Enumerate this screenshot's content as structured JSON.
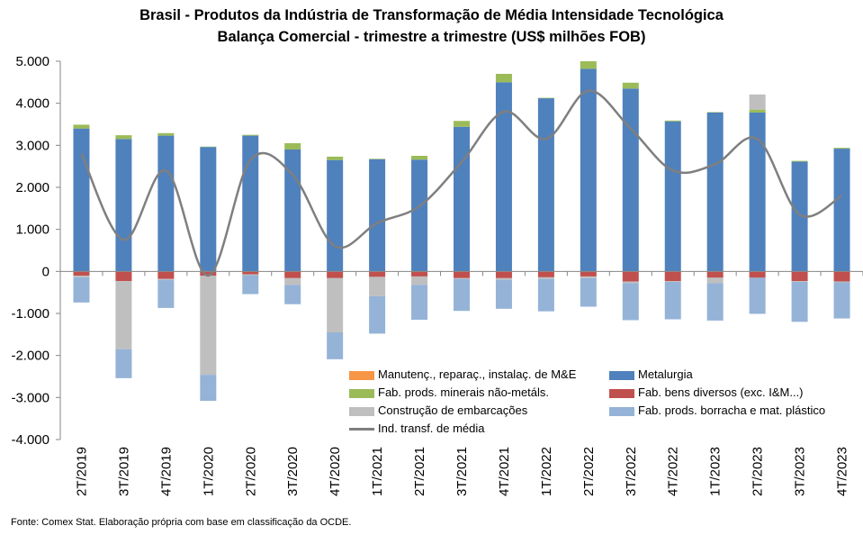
{
  "title_line1": "Brasil - Produtos da Indústria de Transformação de Média Intensidade Tecnológica",
  "title_line2": "Balança Comercial - trimestre a trimestre (US$ milhões FOB)",
  "source": "Fonte: Comex Stat. Elaboração própria com base em classificação da OCDE.",
  "chart_data": {
    "type": "bar",
    "stacked": true,
    "categories": [
      "2T/2019",
      "3T/2019",
      "4T/2019",
      "1T/2020",
      "2T/2020",
      "3T/2020",
      "4T/2020",
      "1T/2021",
      "2T/2021",
      "3T/2021",
      "4T/2021",
      "1T/2022",
      "2T/2022",
      "3T/2022",
      "4T/2022",
      "1T/2023",
      "2T/2023",
      "3T/2023",
      "4T/2023"
    ],
    "ylim": [
      -4000,
      5000
    ],
    "yticks": [
      -4000,
      -3000,
      -2000,
      -1000,
      0,
      1000,
      2000,
      3000,
      4000,
      5000
    ],
    "ytick_labels": [
      "-4.000",
      "-3.000",
      "-2.000",
      "-1.000",
      "0",
      "1.000",
      "2.000",
      "3.000",
      "4.000",
      "5.000"
    ],
    "grid": false,
    "legend_placement": "bottom-right",
    "series": [
      {
        "name": "Manutenç., reparaç., instalaç. de M&E",
        "color": "#F79646",
        "values": [
          -10,
          -10,
          -10,
          -10,
          -10,
          -10,
          -10,
          -10,
          -10,
          -10,
          -10,
          -10,
          -10,
          -10,
          -10,
          -10,
          -10,
          -10,
          -10
        ]
      },
      {
        "name": "Metalurgia",
        "color": "#4F81BD",
        "values": [
          3400,
          3150,
          3230,
          2960,
          3230,
          2900,
          2650,
          2670,
          2660,
          3440,
          4500,
          4120,
          4820,
          4350,
          3570,
          3780,
          3780,
          2610,
          2920
        ]
      },
      {
        "name": "Fab. prods. minerais não-metáls.",
        "color": "#9BBB59",
        "values": [
          90,
          90,
          60,
          10,
          20,
          150,
          80,
          10,
          90,
          140,
          200,
          10,
          180,
          140,
          20,
          10,
          70,
          20,
          20
        ]
      },
      {
        "name": "Fab. bens diversos (exc. I&M...)",
        "color": "#C0504D",
        "values": [
          -90,
          -220,
          -170,
          -90,
          -60,
          -150,
          -150,
          -120,
          -110,
          -150,
          -150,
          -130,
          -110,
          -230,
          -220,
          -140,
          -140,
          -220,
          -230
        ]
      },
      {
        "name": "Construção de embarcações",
        "color": "#BFBFBF",
        "values": [
          -40,
          -1620,
          -20,
          -2360,
          -20,
          -160,
          -1290,
          -460,
          -200,
          -20,
          -40,
          -40,
          -40,
          -40,
          -20,
          -130,
          360,
          -20,
          -20
        ]
      },
      {
        "name": "Fab. prods. borracha e mat. plástico",
        "color": "#95B3D7",
        "values": [
          -600,
          -690,
          -670,
          -620,
          -450,
          -460,
          -640,
          -890,
          -830,
          -760,
          -690,
          -770,
          -680,
          -880,
          -890,
          -890,
          -860,
          -950,
          -860
        ]
      }
    ],
    "line": {
      "name": "Ind. transf. de média",
      "color": "#7F7F7F",
      "values": [
        2800,
        750,
        2400,
        -100,
        2650,
        2300,
        600,
        1150,
        1550,
        2600,
        3800,
        3150,
        4300,
        3400,
        2400,
        2550,
        3150,
        1350,
        1800
      ]
    }
  }
}
